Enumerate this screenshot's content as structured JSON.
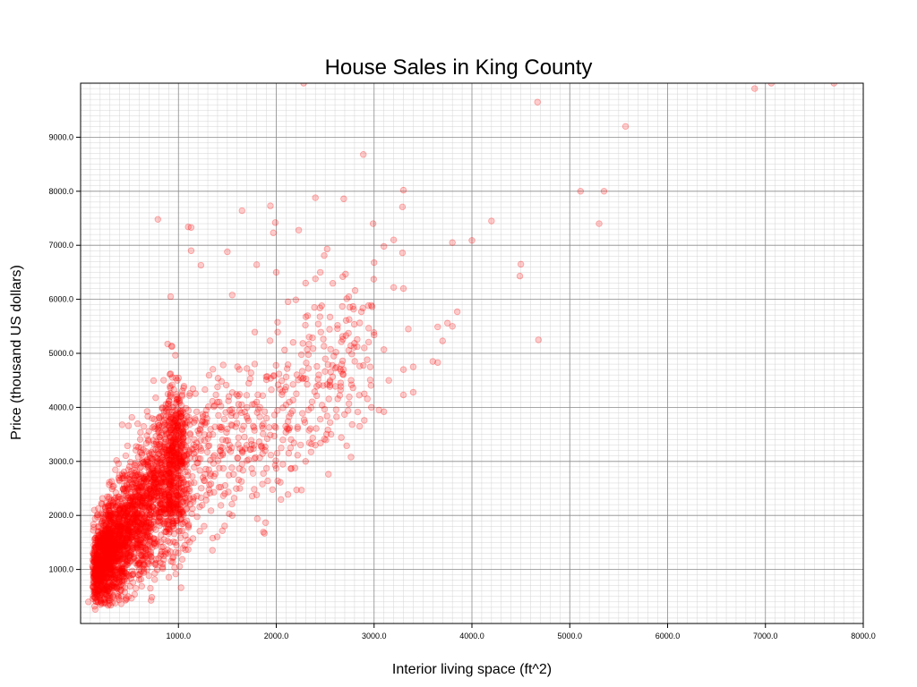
{
  "chart_data": {
    "type": "scatter",
    "title": "House Sales in King County",
    "xlabel": "Interior living space (ft^2)",
    "ylabel": "Price (thousand US dollars)",
    "xlim": [
      0,
      8000
    ],
    "ylim": [
      0,
      10000
    ],
    "x_ticks": [
      "1000.0",
      "2000.0",
      "3000.0",
      "4000.0",
      "5000.0",
      "6000.0",
      "7000.0",
      "8000.0"
    ],
    "y_ticks": [
      "1000.0",
      "2000.0",
      "3000.0",
      "4000.0",
      "5000.0",
      "6000.0",
      "7000.0",
      "8000.0",
      "9000.0"
    ],
    "grid": true,
    "minor_grid": true,
    "marker_color": "#ff0000",
    "marker_alpha": 0.2,
    "points": [
      [
        2280,
        10000
      ],
      [
        4670,
        9650
      ],
      [
        5570,
        9200
      ],
      [
        6890,
        9900
      ],
      [
        7060,
        10000
      ],
      [
        7700,
        10000
      ],
      [
        2890,
        8680
      ],
      [
        3300,
        8020
      ],
      [
        5110,
        8000
      ],
      [
        5350,
        8000
      ],
      [
        2400,
        7880
      ],
      [
        2690,
        7860
      ],
      [
        3290,
        7710
      ],
      [
        1940,
        7730
      ],
      [
        1650,
        7640
      ],
      [
        790,
        7480
      ],
      [
        1100,
        7340
      ],
      [
        1130,
        7330
      ],
      [
        1990,
        7420
      ],
      [
        4200,
        7450
      ],
      [
        5300,
        7400
      ],
      [
        2230,
        7280
      ],
      [
        1970,
        7230
      ],
      [
        2990,
        7400
      ],
      [
        3200,
        7100
      ],
      [
        4000,
        7090
      ],
      [
        3800,
        7050
      ],
      [
        3100,
        6980
      ],
      [
        2520,
        6930
      ],
      [
        2490,
        6810
      ],
      [
        1500,
        6880
      ],
      [
        1130,
        6900
      ],
      [
        3290,
        6860
      ],
      [
        4500,
        6650
      ],
      [
        4490,
        6430
      ],
      [
        3000,
        6680
      ],
      [
        2000,
        6500
      ],
      [
        1800,
        6640
      ],
      [
        1230,
        6630
      ],
      [
        2450,
        6500
      ],
      [
        2680,
        6420
      ],
      [
        3200,
        6220
      ],
      [
        3300,
        6200
      ],
      [
        2400,
        6380
      ],
      [
        2300,
        6300
      ],
      [
        920,
        6050
      ],
      [
        1550,
        6080
      ],
      [
        2200,
        5990
      ],
      [
        2390,
        5850
      ],
      [
        2870,
        5770
      ],
      [
        3850,
        5770
      ],
      [
        3750,
        5560
      ],
      [
        3800,
        5500
      ],
      [
        3650,
        5490
      ],
      [
        3350,
        5450
      ],
      [
        3700,
        5230
      ],
      [
        4680,
        5250
      ],
      [
        3000,
        5340
      ],
      [
        2900,
        5100
      ],
      [
        3100,
        5070
      ],
      [
        3600,
        4850
      ],
      [
        3650,
        4830
      ],
      [
        3300,
        4700
      ],
      [
        3400,
        4750
      ],
      [
        3150,
        4500
      ],
      [
        2900,
        4250
      ],
      [
        3300,
        4230
      ],
      [
        3400,
        4280
      ],
      [
        3050,
        3950
      ],
      [
        3100,
        3920
      ],
      [
        2900,
        3760
      ],
      [
        2450,
        3780
      ],
      [
        2550,
        3720
      ],
      [
        2400,
        3300
      ],
      [
        2560,
        3500
      ],
      [
        2300,
        3000
      ],
      [
        2000,
        2870
      ],
      [
        1800,
        2380
      ],
      [
        1550,
        2000
      ],
      [
        1350,
        1580
      ],
      [
        1100,
        1370
      ],
      [
        150,
        260
      ],
      [
        240,
        380
      ],
      [
        80,
        400
      ],
      [
        1400,
        4380
      ],
      [
        1550,
        3900
      ],
      [
        1700,
        4720
      ],
      [
        1800,
        4100
      ],
      [
        2100,
        4380
      ],
      [
        2250,
        4550
      ],
      [
        1450,
        3400
      ],
      [
        1900,
        3800
      ],
      [
        2050,
        3250
      ],
      [
        1650,
        2950
      ],
      [
        1250,
        2700
      ],
      [
        1150,
        2300
      ]
    ]
  }
}
